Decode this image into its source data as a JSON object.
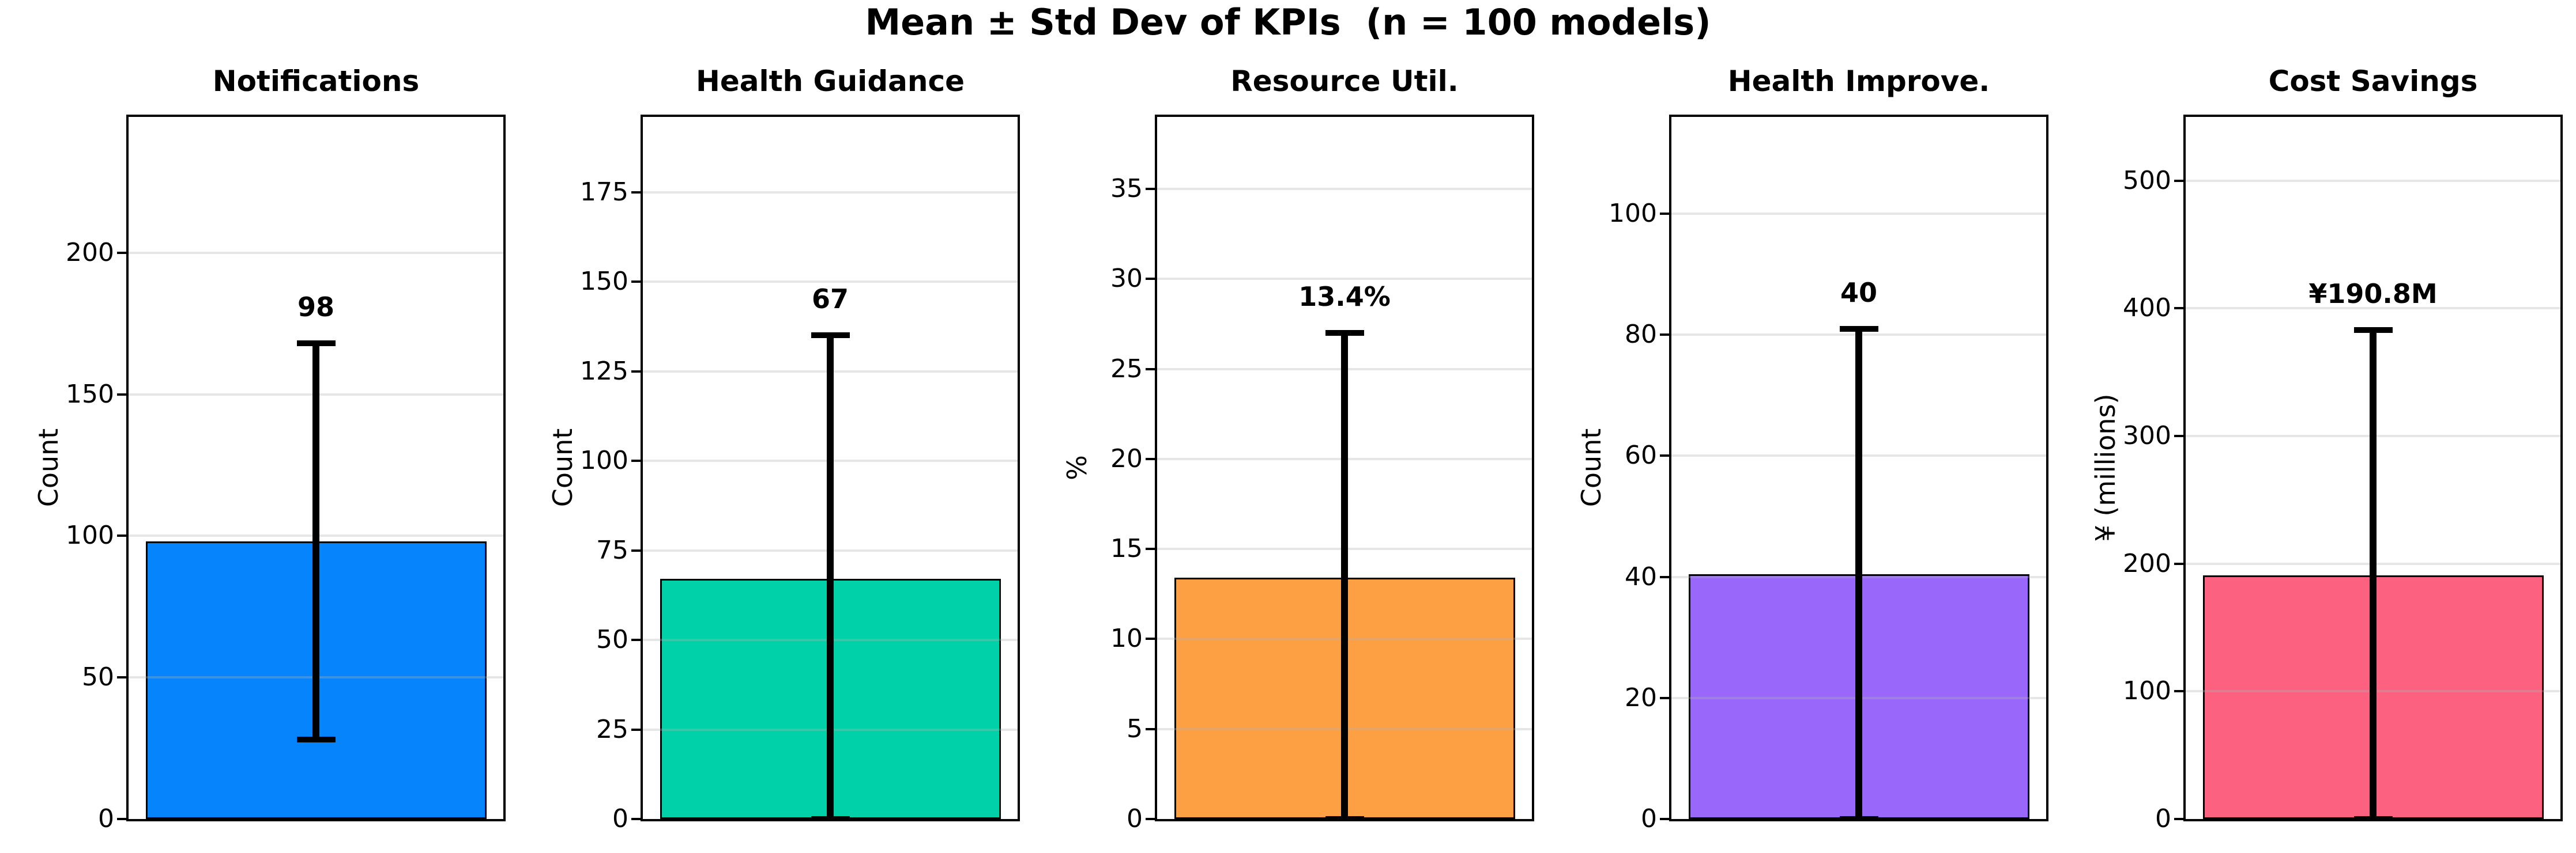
{
  "title": "Mean ± Std Dev of KPIs  (n = 100 models)",
  "chart_data": {
    "type": "bar",
    "title": "Mean ± Std Dev of KPIs  (n = 100 models)",
    "grid": true,
    "legend": false,
    "xticklabels": [],
    "subplots": [
      {
        "title": "Notifications",
        "ylabel": "Count",
        "bar_label": "98",
        "mean": 98,
        "std": 70,
        "err_low": 28,
        "err_high": 168,
        "yticks": [
          0,
          50,
          100,
          150,
          200
        ],
        "ylim": [
          0,
          248
        ],
        "color": "#0684fc"
      },
      {
        "title": "Health Guidance",
        "ylabel": "Count",
        "bar_label": "67",
        "mean": 67,
        "std": 68,
        "err_low": 0,
        "err_high": 135,
        "yticks": [
          0,
          25,
          50,
          75,
          100,
          125,
          150,
          175
        ],
        "ylim": [
          0,
          196
        ],
        "color": "#00d1a9"
      },
      {
        "title": "Resource Util.",
        "ylabel": "%",
        "bar_label": "13.4%",
        "mean": 13.4,
        "std": 13.6,
        "err_low": 0,
        "err_high": 27,
        "yticks": [
          0,
          5,
          10,
          15,
          20,
          25,
          30,
          35
        ],
        "ylim": [
          0,
          39
        ],
        "color": "#fda044"
      },
      {
        "title": "Health Improve.",
        "ylabel": "Count",
        "bar_label": "40",
        "mean": 40.4,
        "std": 40.6,
        "err_low": 0,
        "err_high": 81,
        "yticks": [
          0,
          20,
          40,
          60,
          80,
          100
        ],
        "ylim": [
          0,
          116
        ],
        "color": "#9968fb"
      },
      {
        "title": "Cost Savings",
        "ylabel": "¥ (millions)",
        "bar_label": "¥190.8M",
        "mean": 190.8,
        "std": 192,
        "err_low": 0,
        "err_high": 383,
        "yticks": [
          0,
          100,
          200,
          300,
          400,
          500
        ],
        "ylim": [
          0,
          550
        ],
        "color": "#fc6180"
      }
    ]
  }
}
